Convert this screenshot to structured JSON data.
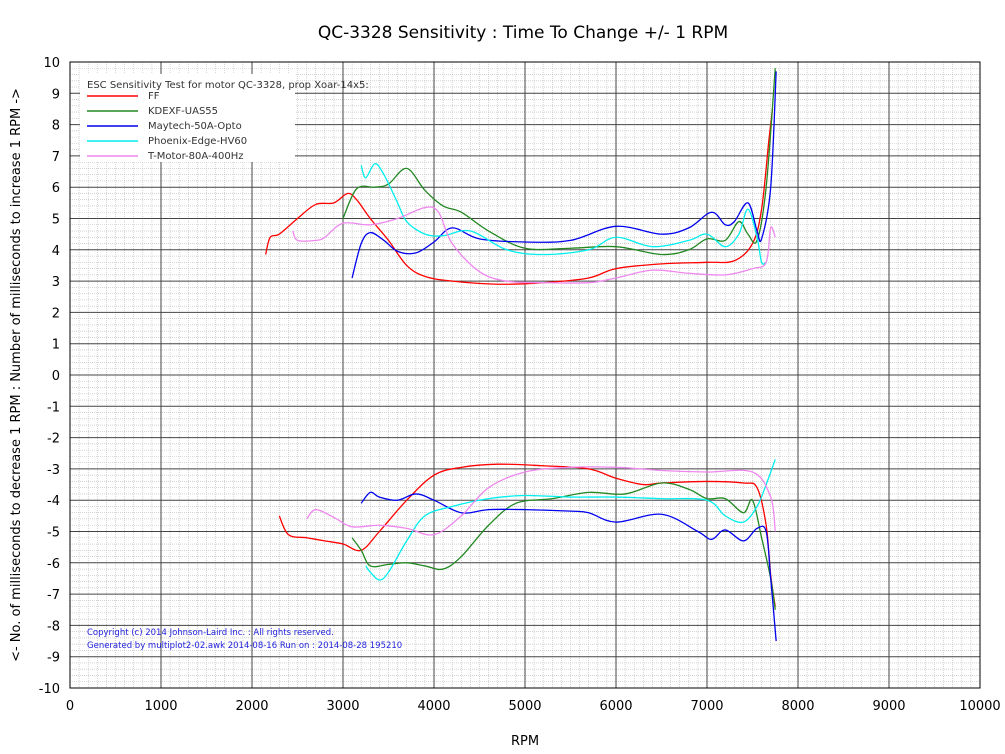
{
  "chart_data": {
    "type": "line",
    "title": "QC-3328 Sensitivity : Time To Change +/- 1 RPM",
    "xlabel": "RPM",
    "ylabel": "<- No. of milliseconds to decrease 1 RPM : Number of milliseconds to increase 1 RPM ->",
    "xlim": [
      0,
      10000
    ],
    "ylim": [
      -10,
      10
    ],
    "xticks": [
      "0",
      "1000",
      "2000",
      "3000",
      "4000",
      "5000",
      "6000",
      "7000",
      "8000",
      "9000",
      "10000"
    ],
    "yticks": [
      "10",
      "9",
      "8",
      "7",
      "6",
      "5",
      "4",
      "3",
      "2",
      "1",
      "0",
      "-1",
      "-2",
      "-3",
      "-4",
      "-5",
      "-6",
      "-7",
      "-8",
      "-9",
      "-10"
    ],
    "grid": true,
    "legend_title": "ESC Sensitivity Test for motor QC-3328, prop Xoar-14x5:",
    "legend_position": "top-left",
    "annotations": [
      "Copyright (c) 2014 Johnson-Laird Inc. : All rights reserved.",
      "Generated by multiplot2-02.awk 2014-08-16 Run on : 2014-08-28 195210"
    ],
    "series": [
      {
        "name": "FF",
        "color": "#ff0000",
        "increase": [
          [
            2150,
            3.85
          ],
          [
            2200,
            4.4
          ],
          [
            2300,
            4.5
          ],
          [
            2500,
            5.0
          ],
          [
            2700,
            5.45
          ],
          [
            2900,
            5.5
          ],
          [
            3050,
            5.8
          ],
          [
            3150,
            5.6
          ],
          [
            3300,
            5.0
          ],
          [
            3500,
            4.3
          ],
          [
            3700,
            3.5
          ],
          [
            3900,
            3.15
          ],
          [
            4200,
            3.0
          ],
          [
            4700,
            2.9
          ],
          [
            5200,
            2.95
          ],
          [
            5700,
            3.1
          ],
          [
            6000,
            3.4
          ],
          [
            6500,
            3.55
          ],
          [
            7000,
            3.6
          ],
          [
            7300,
            3.65
          ],
          [
            7500,
            4.2
          ],
          [
            7600,
            5.3
          ],
          [
            7680,
            7.5
          ],
          [
            7720,
            8.5
          ]
        ],
        "decrease": [
          [
            2300,
            -4.5
          ],
          [
            2400,
            -5.1
          ],
          [
            2600,
            -5.2
          ],
          [
            2800,
            -5.3
          ],
          [
            3000,
            -5.4
          ],
          [
            3200,
            -5.6
          ],
          [
            3400,
            -5.0
          ],
          [
            3700,
            -4.0
          ],
          [
            4000,
            -3.2
          ],
          [
            4300,
            -2.95
          ],
          [
            4700,
            -2.85
          ],
          [
            5200,
            -2.9
          ],
          [
            5700,
            -3.0
          ],
          [
            6000,
            -3.3
          ],
          [
            6300,
            -3.5
          ],
          [
            6500,
            -3.45
          ],
          [
            7000,
            -3.4
          ],
          [
            7400,
            -3.45
          ],
          [
            7550,
            -3.6
          ],
          [
            7650,
            -4.8
          ],
          [
            7700,
            -6.4
          ],
          [
            7750,
            -7.4
          ]
        ]
      },
      {
        "name": "KDEXF-UAS55",
        "color": "#228822",
        "increase": [
          [
            3000,
            5.0
          ],
          [
            3150,
            5.95
          ],
          [
            3350,
            6.0
          ],
          [
            3500,
            6.1
          ],
          [
            3700,
            6.6
          ],
          [
            3900,
            5.9
          ],
          [
            4100,
            5.4
          ],
          [
            4300,
            5.2
          ],
          [
            4600,
            4.6
          ],
          [
            5000,
            4.05
          ],
          [
            5500,
            4.05
          ],
          [
            6000,
            4.1
          ],
          [
            6500,
            3.85
          ],
          [
            6800,
            4.0
          ],
          [
            7000,
            4.35
          ],
          [
            7200,
            4.3
          ],
          [
            7350,
            4.9
          ],
          [
            7450,
            4.5
          ],
          [
            7550,
            4.3
          ],
          [
            7650,
            6.0
          ],
          [
            7750,
            9.8
          ]
        ],
        "decrease": [
          [
            3100,
            -5.2
          ],
          [
            3200,
            -5.6
          ],
          [
            3300,
            -6.1
          ],
          [
            3500,
            -6.05
          ],
          [
            3700,
            -6.0
          ],
          [
            3900,
            -6.1
          ],
          [
            4100,
            -6.2
          ],
          [
            4300,
            -5.8
          ],
          [
            4600,
            -4.8
          ],
          [
            4900,
            -4.1
          ],
          [
            5300,
            -3.95
          ],
          [
            5700,
            -3.75
          ],
          [
            6100,
            -3.8
          ],
          [
            6500,
            -3.45
          ],
          [
            6800,
            -3.65
          ],
          [
            7000,
            -3.95
          ],
          [
            7200,
            -3.95
          ],
          [
            7400,
            -4.4
          ],
          [
            7500,
            -4.0
          ],
          [
            7600,
            -5.2
          ],
          [
            7700,
            -6.5
          ],
          [
            7750,
            -7.5
          ]
        ]
      },
      {
        "name": "Maytech-50A-Opto",
        "color": "#0000ee",
        "increase": [
          [
            3100,
            3.1
          ],
          [
            3200,
            4.2
          ],
          [
            3300,
            4.55
          ],
          [
            3450,
            4.3
          ],
          [
            3600,
            3.95
          ],
          [
            3800,
            3.9
          ],
          [
            4000,
            4.25
          ],
          [
            4200,
            4.7
          ],
          [
            4500,
            4.35
          ],
          [
            5000,
            4.25
          ],
          [
            5500,
            4.3
          ],
          [
            6000,
            4.75
          ],
          [
            6500,
            4.5
          ],
          [
            6800,
            4.7
          ],
          [
            7050,
            5.2
          ],
          [
            7200,
            4.8
          ],
          [
            7300,
            4.9
          ],
          [
            7450,
            5.5
          ],
          [
            7550,
            4.6
          ],
          [
            7600,
            4.35
          ],
          [
            7700,
            6.0
          ],
          [
            7760,
            9.7
          ]
        ],
        "decrease": [
          [
            3200,
            -4.1
          ],
          [
            3300,
            -3.75
          ],
          [
            3400,
            -3.9
          ],
          [
            3600,
            -4.0
          ],
          [
            3800,
            -3.8
          ],
          [
            4000,
            -4.0
          ],
          [
            4300,
            -4.4
          ],
          [
            4600,
            -4.3
          ],
          [
            5000,
            -4.3
          ],
          [
            5500,
            -4.35
          ],
          [
            5700,
            -4.4
          ],
          [
            6000,
            -4.7
          ],
          [
            6500,
            -4.45
          ],
          [
            6900,
            -5.0
          ],
          [
            7050,
            -5.25
          ],
          [
            7200,
            -4.95
          ],
          [
            7400,
            -5.3
          ],
          [
            7550,
            -4.9
          ],
          [
            7650,
            -5.0
          ],
          [
            7700,
            -6.5
          ],
          [
            7760,
            -8.5
          ]
        ]
      },
      {
        "name": "Phoenix-Edge-HV60",
        "color": "#00eeee",
        "increase": [
          [
            3200,
            6.7
          ],
          [
            3250,
            6.3
          ],
          [
            3350,
            6.75
          ],
          [
            3450,
            6.4
          ],
          [
            3600,
            5.5
          ],
          [
            3700,
            4.9
          ],
          [
            3900,
            4.5
          ],
          [
            4100,
            4.45
          ],
          [
            4400,
            4.6
          ],
          [
            4800,
            4.0
          ],
          [
            5200,
            3.85
          ],
          [
            5700,
            4.0
          ],
          [
            6000,
            4.4
          ],
          [
            6400,
            4.1
          ],
          [
            6800,
            4.3
          ],
          [
            7000,
            4.5
          ],
          [
            7200,
            4.1
          ],
          [
            7350,
            4.5
          ],
          [
            7450,
            5.3
          ],
          [
            7550,
            4.4
          ],
          [
            7600,
            3.6
          ],
          [
            7650,
            3.6
          ]
        ],
        "decrease": [
          [
            3250,
            -6.1
          ],
          [
            3300,
            -6.3
          ],
          [
            3400,
            -6.55
          ],
          [
            3500,
            -6.3
          ],
          [
            3700,
            -5.3
          ],
          [
            3900,
            -4.5
          ],
          [
            4200,
            -4.2
          ],
          [
            4600,
            -3.95
          ],
          [
            5000,
            -3.85
          ],
          [
            5500,
            -3.9
          ],
          [
            6000,
            -3.9
          ],
          [
            6500,
            -3.95
          ],
          [
            7000,
            -4.0
          ],
          [
            7200,
            -4.5
          ],
          [
            7400,
            -4.7
          ],
          [
            7550,
            -4.2
          ],
          [
            7650,
            -3.5
          ],
          [
            7750,
            -2.7
          ]
        ]
      },
      {
        "name": "T-Motor-80A-400Hz",
        "color": "#ee88ee",
        "increase": [
          [
            2450,
            4.6
          ],
          [
            2500,
            4.3
          ],
          [
            2700,
            4.3
          ],
          [
            2800,
            4.4
          ],
          [
            3000,
            4.85
          ],
          [
            3300,
            4.8
          ],
          [
            3600,
            5.0
          ],
          [
            3900,
            5.35
          ],
          [
            4050,
            5.2
          ],
          [
            4200,
            4.2
          ],
          [
            4500,
            3.3
          ],
          [
            4800,
            3.0
          ],
          [
            5200,
            2.95
          ],
          [
            5700,
            2.95
          ],
          [
            6000,
            3.1
          ],
          [
            6400,
            3.35
          ],
          [
            6800,
            3.25
          ],
          [
            7200,
            3.2
          ],
          [
            7500,
            3.4
          ],
          [
            7650,
            3.6
          ],
          [
            7700,
            4.7
          ],
          [
            7750,
            4.4
          ]
        ],
        "decrease": [
          [
            2600,
            -4.6
          ],
          [
            2700,
            -4.3
          ],
          [
            2900,
            -4.55
          ],
          [
            3100,
            -4.85
          ],
          [
            3400,
            -4.8
          ],
          [
            3700,
            -4.9
          ],
          [
            4000,
            -5.1
          ],
          [
            4300,
            -4.5
          ],
          [
            4600,
            -3.6
          ],
          [
            5000,
            -3.1
          ],
          [
            5500,
            -2.95
          ],
          [
            6000,
            -2.95
          ],
          [
            6500,
            -3.05
          ],
          [
            7000,
            -3.1
          ],
          [
            7500,
            -3.1
          ],
          [
            7700,
            -3.9
          ],
          [
            7750,
            -5.0
          ]
        ]
      }
    ]
  }
}
